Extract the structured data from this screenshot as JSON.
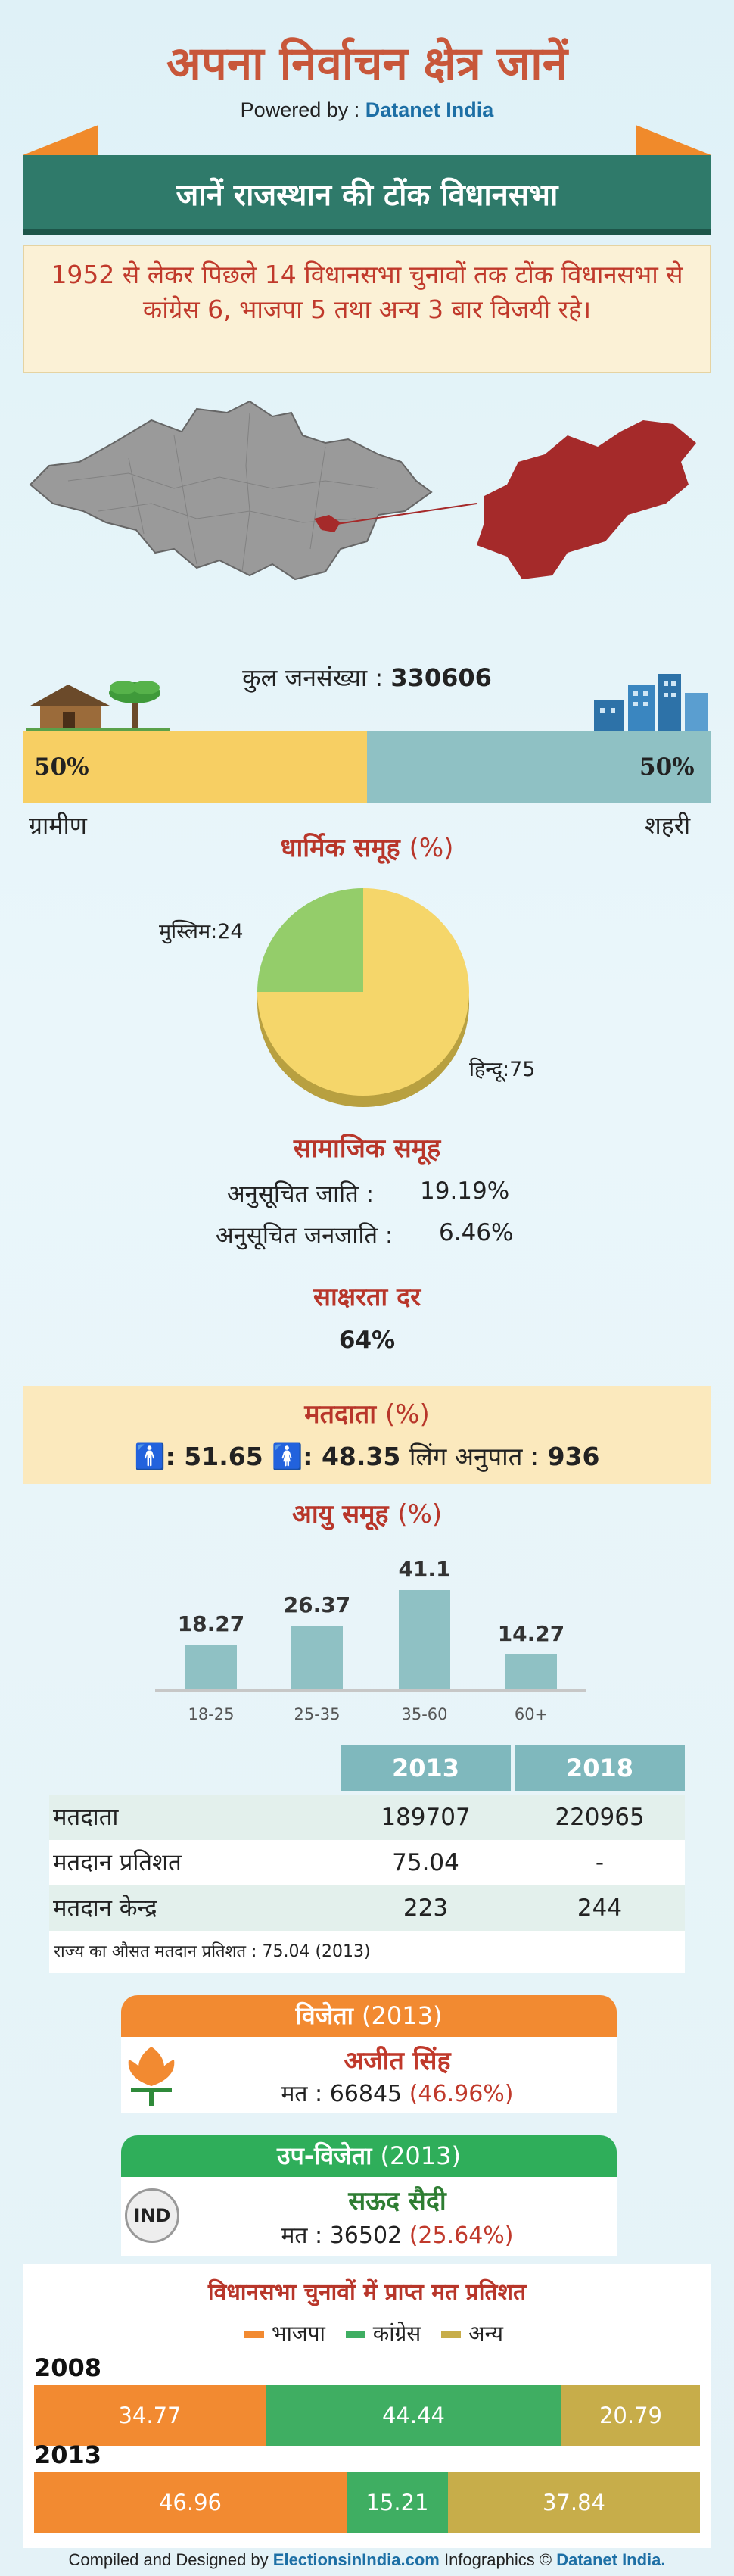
{
  "header": {
    "title": "अपना निर्वाचन क्षेत्र जानें",
    "powered_prefix": "Powered by :",
    "powered_brand": "Datanet India",
    "banner": "जानें राजस्थान की टोंक विधानसभा"
  },
  "intro": "1952 से लेकर पिछले 14 विधानसभा चुनावों तक टोंक विधानसभा से कांग्रेस 6, भाजपा 5 तथा अन्य 3 बार विजयी रहे।",
  "population": {
    "label": "कुल जनसंख्या :",
    "value": "330606",
    "rural_pct": "50%",
    "urban_pct": "50%",
    "rural_label": "ग्रामीण",
    "urban_label": "शहरी"
  },
  "religion": {
    "title": "धार्मिक समूह",
    "unit": "(%)",
    "muslim_label": "मुस्लिम:24",
    "hindu_label": "हिन्दू:75"
  },
  "social": {
    "title": "सामाजिक समूह",
    "sc_label": "अनुसूचित जाति :",
    "sc_value": "19.19%",
    "st_label": "अनुसूचित जनजाति :",
    "st_value": "6.46%"
  },
  "literacy": {
    "title": "साक्षरता दर",
    "value": "64%"
  },
  "voters": {
    "title": "मतदाता",
    "unit": "(%)",
    "male": ": 51.65",
    "female": ": 48.35",
    "ratio_label": "लिंग अनुपात :",
    "ratio_value": "936"
  },
  "age": {
    "title": "आयु समूह",
    "unit": "(%)"
  },
  "chart_data": {
    "type": "bar",
    "categories": [
      "18-25",
      "25-35",
      "35-60",
      "60+"
    ],
    "values": [
      18.27,
      26.37,
      41.1,
      14.27
    ],
    "title": "आयु समूह (%)"
  },
  "table": {
    "headers": [
      "2013",
      "2018"
    ],
    "rows": [
      {
        "label": "मतदाता",
        "v2013": "189707",
        "v2018": "220965"
      },
      {
        "label": "मतदान प्रतिशत",
        "v2013": "75.04",
        "v2018": "-"
      },
      {
        "label": "मतदान केन्द्र",
        "v2013": "223",
        "v2018": "244"
      }
    ],
    "note": "राज्य का औसत मतदान प्रतिशत : 75.04 (2013)"
  },
  "winner": {
    "heading": "विजेता",
    "year": "(2013)",
    "name": "अजीत सिंह",
    "votes_label": "मत : 66845",
    "votes_pct": "(46.96%)",
    "color": "#f28a31"
  },
  "runner": {
    "heading": "उप-विजेता",
    "year": "(2013)",
    "name": "सऊद सैदी",
    "votes_label": "मत : 36502",
    "votes_pct": "(25.64%)",
    "party_badge": "IND",
    "color": "#2fae5a"
  },
  "vote_share": {
    "title": "विधानसभा चुनावों में प्राप्त मत प्रतिशत",
    "legend": [
      "भाजपा",
      "कांग्रेस",
      "अन्य"
    ],
    "colors": [
      "#f28a31",
      "#3fae62",
      "#c7ad4a"
    ],
    "years": [
      {
        "year": "2008",
        "values": [
          34.77,
          44.44,
          20.79
        ],
        "labels": [
          "34.77",
          "44.44",
          "20.79"
        ]
      },
      {
        "year": "2013",
        "values": [
          46.96,
          15.21,
          37.84
        ],
        "labels": [
          "46.96",
          "15.21",
          "37.84"
        ]
      }
    ]
  },
  "footer": {
    "prefix": "Compiled and Designed by",
    "site": "ElectionsinIndia.com",
    "middle": "Infographics ©",
    "brand": "Datanet India."
  }
}
